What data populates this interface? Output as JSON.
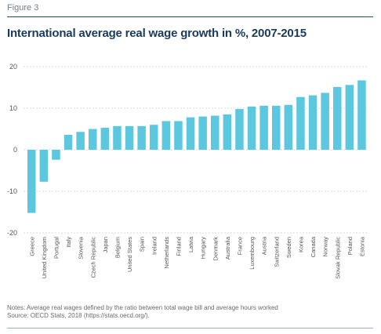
{
  "figure_label": "Figure 3",
  "notes": "Notes: Average real wages defined by the ratio between total wage bill and average hours worked",
  "source": "Source: OECD Stats, 2018 (https://stats.oecd.org/).",
  "chart_data": {
    "type": "bar",
    "title": "International average real wage growth in %, 2007-2015",
    "xlabel": "",
    "ylabel": "",
    "ylim": [
      -20,
      20
    ],
    "yticks": [
      -20,
      -10,
      0,
      10,
      20
    ],
    "grid": "horizontal",
    "bar_color": "#5bc8df",
    "categories": [
      "Greece",
      "United Kingdom",
      "Portugal",
      "Italy",
      "Slovenia",
      "Czech Republic",
      "Japan",
      "Belgium",
      "United States",
      "Spain",
      "Ireland",
      "Netherlands",
      "Finland",
      "Latvia",
      "Hungary",
      "Denmark",
      "Australia",
      "France",
      "Luxembourg",
      "Austria",
      "Switzerland",
      "Sweden",
      "Korea",
      "Canada",
      "Norway",
      "Slovak Republic",
      "Poland",
      "Estonia"
    ],
    "values": [
      -15.2,
      -7.7,
      -2.4,
      3.6,
      4.3,
      5.0,
      5.3,
      5.7,
      5.7,
      5.7,
      6.0,
      6.9,
      6.9,
      7.8,
      8.0,
      8.2,
      8.5,
      9.8,
      10.4,
      10.6,
      10.6,
      10.8,
      12.7,
      13.1,
      13.7,
      15.1,
      15.6,
      16.7
    ]
  }
}
